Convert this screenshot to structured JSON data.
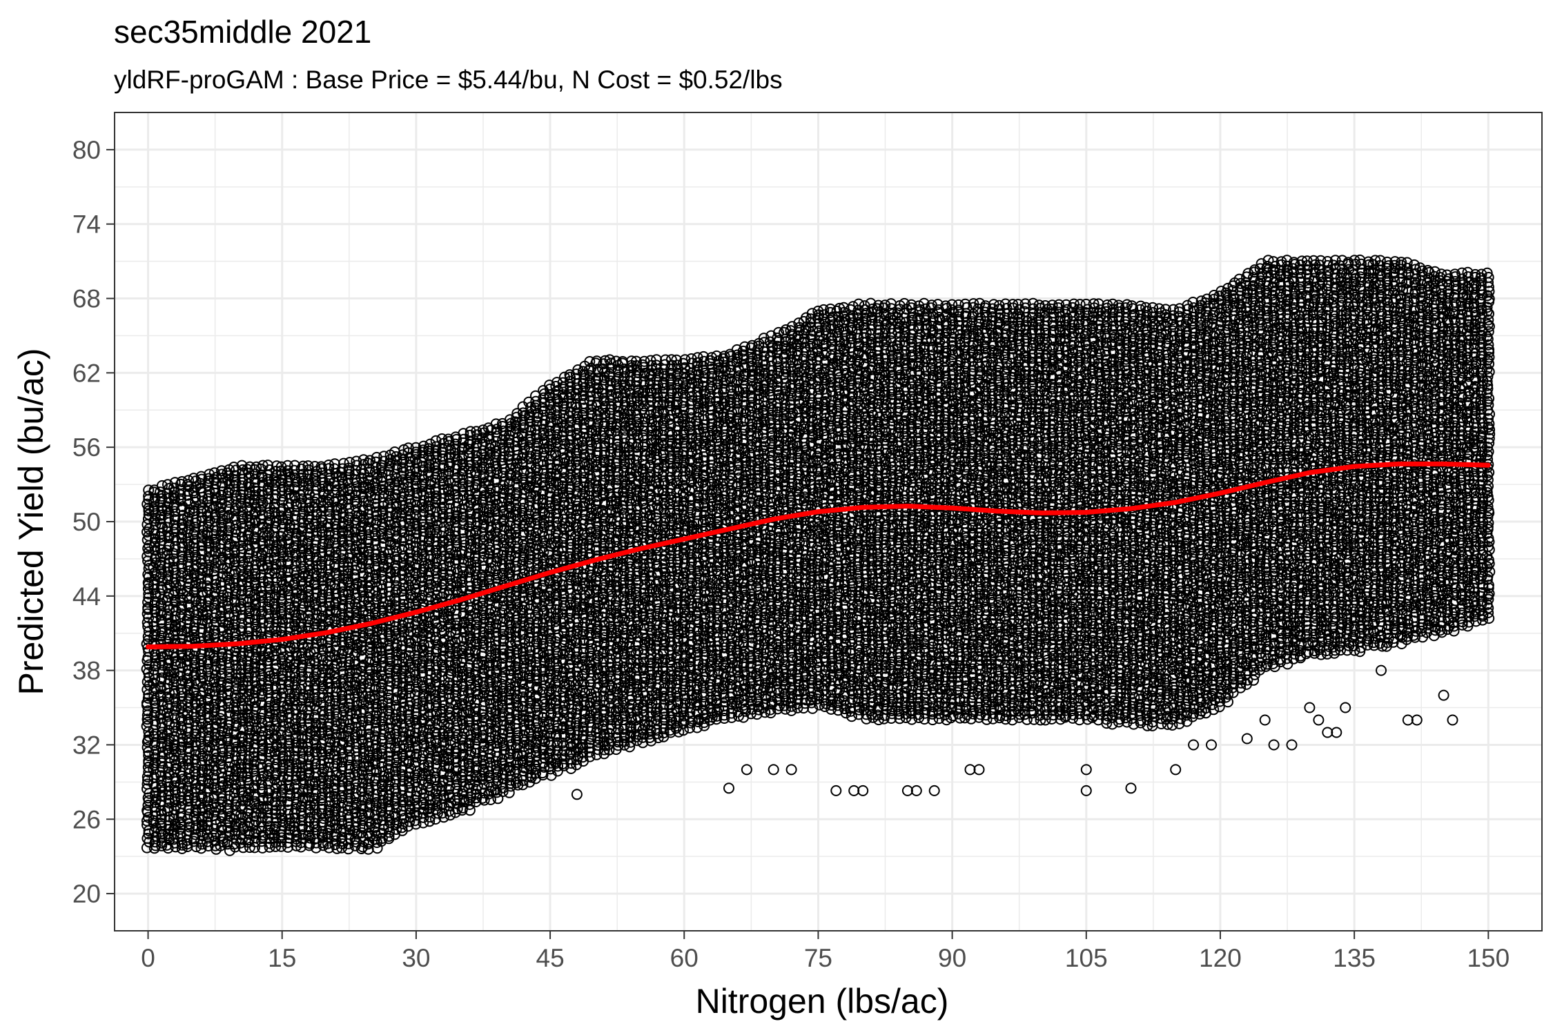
{
  "chart_data": {
    "type": "scatter",
    "title": "sec35middle 2021",
    "subtitle": "yldRF-proGAM : Base Price = $5.44/bu, N Cost = $0.52/lbs",
    "xlabel": "Nitrogen (lbs/ac)",
    "ylabel": "Predicted Yield (bu/ac)",
    "xlim": [
      -3.75,
      156
    ],
    "ylim": [
      17,
      83
    ],
    "x_ticks": [
      0,
      15,
      30,
      45,
      60,
      75,
      90,
      105,
      120,
      135,
      150
    ],
    "y_ticks": [
      20,
      26,
      32,
      38,
      44,
      50,
      56,
      62,
      68,
      74,
      80
    ],
    "x_tick_labels": [
      "0",
      "15",
      "30",
      "45",
      "60",
      "75",
      "90",
      "105",
      "120",
      "135",
      "150"
    ],
    "y_tick_labels": [
      "20",
      "26",
      "32",
      "38",
      "44",
      "50",
      "56",
      "62",
      "68",
      "74",
      "80"
    ],
    "grid": true,
    "legend": "none",
    "colors": {
      "points": "#000000",
      "fit_line": "#ff0000",
      "grid": "#ebebeb",
      "panel_border": "#333333"
    },
    "series": [
      {
        "kind": "points",
        "marker": "open-circle",
        "envelope": {
          "x": [
            0,
            5,
            10,
            15,
            20,
            25,
            30,
            35,
            40,
            45,
            50,
            55,
            60,
            65,
            70,
            75,
            80,
            85,
            90,
            95,
            100,
            105,
            110,
            115,
            120,
            125,
            130,
            135,
            140,
            145,
            150
          ],
          "y_min": [
            23.5,
            23.5,
            23.5,
            23.5,
            23.5,
            23.5,
            25.5,
            26.5,
            28,
            29.5,
            31,
            32,
            33,
            34,
            34.5,
            35,
            34,
            34,
            34,
            34,
            34,
            34,
            33.5,
            33.5,
            35,
            38,
            39,
            39.5,
            40,
            41,
            42
          ],
          "y_max": [
            52.5,
            53.5,
            54.5,
            54.5,
            54.5,
            55,
            56,
            57,
            58,
            61,
            63,
            63,
            63,
            63.5,
            65,
            67,
            67.5,
            67.5,
            67.5,
            67.5,
            67.5,
            67.5,
            67.5,
            67,
            68.5,
            71,
            71,
            71,
            71,
            70,
            70
          ]
        },
        "outliers": {
          "x": [
            48,
            65,
            67,
            70,
            72,
            77,
            79,
            80,
            85,
            86,
            88,
            92,
            93,
            105,
            105,
            110,
            115,
            117,
            119,
            123,
            125,
            126,
            128,
            130,
            131,
            132,
            133,
            134,
            138,
            141,
            142,
            145,
            146
          ],
          "y": [
            28,
            28.5,
            30,
            30,
            30,
            28.3,
            28.3,
            28.3,
            28.3,
            28.3,
            28.3,
            30,
            30,
            28.3,
            30,
            28.5,
            30,
            32,
            32,
            32.5,
            34,
            32,
            32,
            35,
            34,
            33,
            33,
            35,
            38,
            34,
            34,
            36,
            34
          ]
        }
      },
      {
        "kind": "line",
        "name": "",
        "x": [
          0,
          5,
          10,
          15,
          20,
          25,
          30,
          35,
          40,
          45,
          50,
          55,
          60,
          65,
          70,
          75,
          80,
          85,
          90,
          95,
          100,
          105,
          110,
          115,
          120,
          125,
          130,
          135,
          140,
          145,
          150
        ],
        "y": [
          39.9,
          39.95,
          40.15,
          40.5,
          41.05,
          41.8,
          42.7,
          43.7,
          44.8,
          45.9,
          46.9,
          47.8,
          48.6,
          49.4,
          50.2,
          50.8,
          51.15,
          51.25,
          51.1,
          50.85,
          50.7,
          50.75,
          51.05,
          51.55,
          52.3,
          53.15,
          53.95,
          54.45,
          54.65,
          54.65,
          54.55
        ]
      }
    ]
  }
}
